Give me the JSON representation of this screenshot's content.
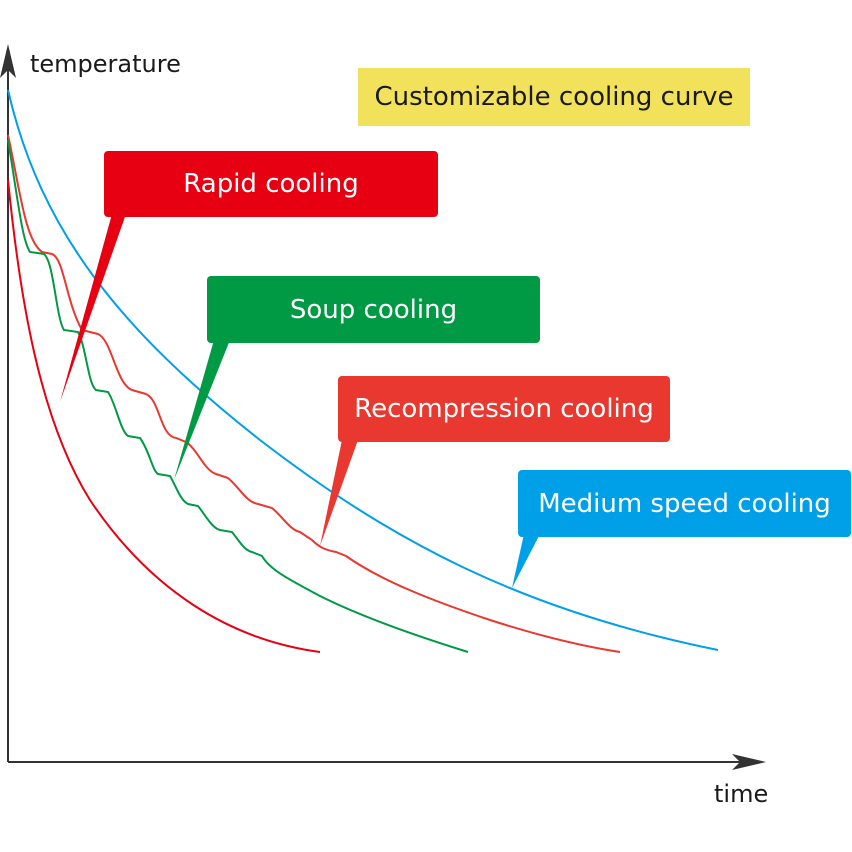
{
  "axes": {
    "y_label": "temperature",
    "x_label": "time"
  },
  "banner": {
    "text": "Customizable cooling curve",
    "color": "#f2e15a"
  },
  "callouts": {
    "rapid": {
      "label": "Rapid cooling",
      "color": "#e60012"
    },
    "soup": {
      "label": "Soup cooling",
      "color": "#009944"
    },
    "recompression": {
      "label": "Recompression cooling",
      "color": "#e8382f"
    },
    "medium": {
      "label": "Medium speed cooling",
      "color": "#00a0e9"
    }
  }
}
